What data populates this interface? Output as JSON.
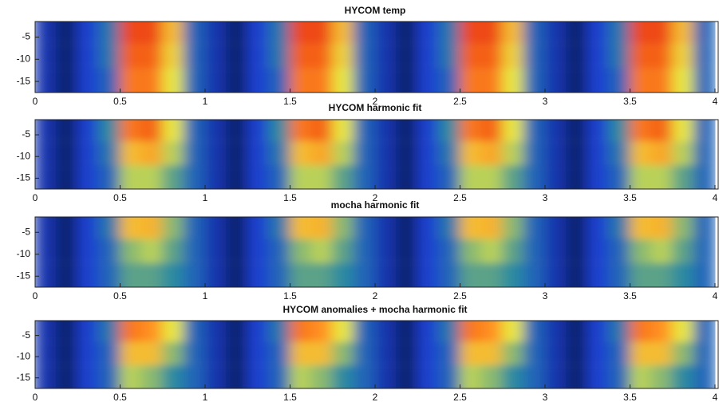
{
  "chart_data": [
    {
      "type": "heatmap",
      "title": "HYCOM temp",
      "xbins": [
        0,
        0.125,
        0.25,
        0.375,
        0.5,
        0.625,
        0.75,
        0.875,
        1,
        1.125,
        1.25,
        1.375,
        1.5,
        1.625,
        1.75,
        1.875,
        2,
        2.125,
        2.25,
        2.375,
        2.5,
        2.625,
        2.75,
        2.875,
        3,
        3.125,
        3.25,
        3.375,
        3.5,
        3.625,
        3.75,
        3.875,
        4
      ],
      "ybins": [
        -1.5,
        -6.5,
        -12,
        -17.5
      ],
      "values": [
        [
          0.15,
          0.05,
          0.2,
          0.35,
          0.95,
          0.95,
          0.7,
          0.3,
          0.15,
          0.05,
          0.2,
          0.35,
          0.95,
          0.95,
          0.7,
          0.3,
          0.15,
          0.05,
          0.2,
          0.35,
          0.95,
          0.95,
          0.7,
          0.3,
          0.15,
          0.05,
          0.2,
          0.35,
          0.95,
          0.95,
          0.7,
          0.3
        ],
        [
          0.15,
          0.05,
          0.2,
          0.35,
          0.9,
          0.9,
          0.65,
          0.3,
          0.15,
          0.05,
          0.2,
          0.35,
          0.9,
          0.9,
          0.65,
          0.3,
          0.15,
          0.05,
          0.2,
          0.35,
          0.9,
          0.9,
          0.65,
          0.3,
          0.15,
          0.05,
          0.2,
          0.35,
          0.9,
          0.9,
          0.65,
          0.3
        ],
        [
          0.15,
          0.05,
          0.2,
          0.3,
          0.85,
          0.85,
          0.6,
          0.3,
          0.15,
          0.05,
          0.2,
          0.3,
          0.85,
          0.85,
          0.6,
          0.3,
          0.15,
          0.05,
          0.2,
          0.3,
          0.85,
          0.85,
          0.6,
          0.3,
          0.15,
          0.05,
          0.2,
          0.3,
          0.85,
          0.85,
          0.6,
          0.3
        ]
      ],
      "colorscale": [
        "#061a4a",
        "#1a3fd0",
        "#2c8aa0",
        "#e8e840",
        "#ff9020",
        "#e83010"
      ],
      "xlim": [
        0,
        4
      ],
      "ylim": [
        -17.5,
        -1.5
      ],
      "xticks": [
        0,
        0.5,
        1,
        1.5,
        2,
        2.5,
        3,
        3.5,
        4
      ],
      "yticks": [
        -5,
        -10,
        -15
      ]
    },
    {
      "type": "heatmap",
      "title": "HYCOM harmonic fit",
      "xbins": [
        0,
        0.125,
        0.25,
        0.375,
        0.5,
        0.625,
        0.75,
        0.875,
        1,
        1.125,
        1.25,
        1.375,
        1.5,
        1.625,
        1.75,
        1.875,
        2,
        2.125,
        2.25,
        2.375,
        2.5,
        2.625,
        2.75,
        2.875,
        3,
        3.125,
        3.25,
        3.375,
        3.5,
        3.625,
        3.75,
        3.875,
        4
      ],
      "ybins": [
        -1.5,
        -6.5,
        -12,
        -17.5
      ],
      "values": [
        [
          0.15,
          0.05,
          0.2,
          0.4,
          0.85,
          0.9,
          0.6,
          0.3,
          0.15,
          0.05,
          0.2,
          0.4,
          0.85,
          0.9,
          0.6,
          0.3,
          0.15,
          0.05,
          0.2,
          0.4,
          0.85,
          0.9,
          0.6,
          0.3,
          0.15,
          0.05,
          0.2,
          0.4,
          0.85,
          0.9,
          0.6,
          0.3
        ],
        [
          0.15,
          0.05,
          0.2,
          0.35,
          0.7,
          0.75,
          0.55,
          0.3,
          0.15,
          0.05,
          0.2,
          0.35,
          0.7,
          0.75,
          0.55,
          0.3,
          0.15,
          0.05,
          0.2,
          0.35,
          0.7,
          0.75,
          0.55,
          0.3,
          0.15,
          0.05,
          0.2,
          0.35,
          0.7,
          0.75,
          0.55,
          0.3
        ],
        [
          0.15,
          0.05,
          0.2,
          0.3,
          0.55,
          0.55,
          0.45,
          0.3,
          0.15,
          0.05,
          0.2,
          0.3,
          0.55,
          0.55,
          0.45,
          0.3,
          0.15,
          0.05,
          0.2,
          0.3,
          0.55,
          0.55,
          0.45,
          0.3,
          0.15,
          0.05,
          0.2,
          0.3,
          0.55,
          0.55,
          0.45,
          0.3
        ]
      ],
      "colorscale": [
        "#061a4a",
        "#1a3fd0",
        "#2c8aa0",
        "#e8e840",
        "#ff9020",
        "#e83010"
      ],
      "xlim": [
        0,
        4
      ],
      "ylim": [
        -17.5,
        -1.5
      ],
      "xticks": [
        0,
        0.5,
        1,
        1.5,
        2,
        2.5,
        3,
        3.5,
        4
      ],
      "yticks": [
        -5,
        -10,
        -15
      ]
    },
    {
      "type": "heatmap",
      "title": "mocha harmonic fit",
      "xbins": [
        0,
        0.125,
        0.25,
        0.375,
        0.5,
        0.625,
        0.75,
        0.875,
        1,
        1.125,
        1.25,
        1.375,
        1.5,
        1.625,
        1.75,
        1.875,
        2,
        2.125,
        2.25,
        2.375,
        2.5,
        2.625,
        2.75,
        2.875,
        3,
        3.125,
        3.25,
        3.375,
        3.5,
        3.625,
        3.75,
        3.875,
        4
      ],
      "ybins": [
        -1.5,
        -6.5,
        -12,
        -17.5
      ],
      "values": [
        [
          0.15,
          0.05,
          0.2,
          0.35,
          0.7,
          0.72,
          0.5,
          0.3,
          0.15,
          0.05,
          0.2,
          0.35,
          0.7,
          0.72,
          0.5,
          0.3,
          0.15,
          0.05,
          0.2,
          0.35,
          0.7,
          0.72,
          0.5,
          0.3,
          0.15,
          0.05,
          0.2,
          0.35,
          0.7,
          0.72,
          0.5,
          0.3
        ],
        [
          0.15,
          0.05,
          0.2,
          0.3,
          0.5,
          0.55,
          0.45,
          0.3,
          0.15,
          0.05,
          0.2,
          0.3,
          0.5,
          0.55,
          0.45,
          0.3,
          0.15,
          0.05,
          0.2,
          0.3,
          0.5,
          0.55,
          0.45,
          0.3,
          0.15,
          0.05,
          0.2,
          0.3,
          0.5,
          0.55,
          0.45,
          0.3
        ],
        [
          0.15,
          0.05,
          0.2,
          0.3,
          0.45,
          0.45,
          0.4,
          0.3,
          0.15,
          0.05,
          0.2,
          0.3,
          0.45,
          0.45,
          0.4,
          0.3,
          0.15,
          0.05,
          0.2,
          0.3,
          0.45,
          0.45,
          0.4,
          0.3,
          0.15,
          0.05,
          0.2,
          0.3,
          0.45,
          0.45,
          0.4,
          0.3
        ]
      ],
      "colorscale": [
        "#061a4a",
        "#1a3fd0",
        "#2c8aa0",
        "#e8e840",
        "#ff9020",
        "#e83010"
      ],
      "xlim": [
        0,
        4
      ],
      "ylim": [
        -17.5,
        -1.5
      ],
      "xticks": [
        0,
        0.5,
        1,
        1.5,
        2,
        2.5,
        3,
        3.5,
        4
      ],
      "yticks": [
        -5,
        -10,
        -15
      ]
    },
    {
      "type": "heatmap",
      "title": "HYCOM anomalies + mocha harmonic fit",
      "xbins": [
        0,
        0.125,
        0.25,
        0.375,
        0.5,
        0.625,
        0.75,
        0.875,
        1,
        1.125,
        1.25,
        1.375,
        1.5,
        1.625,
        1.75,
        1.875,
        2,
        2.125,
        2.25,
        2.375,
        2.5,
        2.625,
        2.75,
        2.875,
        3,
        3.125,
        3.25,
        3.375,
        3.5,
        3.625,
        3.75,
        3.875,
        4
      ],
      "ybins": [
        -1.5,
        -6.5,
        -12,
        -17.5
      ],
      "values": [
        [
          0.15,
          0.05,
          0.2,
          0.35,
          0.85,
          0.8,
          0.6,
          0.3,
          0.15,
          0.05,
          0.2,
          0.35,
          0.85,
          0.8,
          0.6,
          0.3,
          0.15,
          0.05,
          0.2,
          0.35,
          0.85,
          0.8,
          0.6,
          0.3,
          0.15,
          0.05,
          0.2,
          0.35,
          0.85,
          0.8,
          0.6,
          0.3
        ],
        [
          0.15,
          0.05,
          0.2,
          0.3,
          0.7,
          0.7,
          0.5,
          0.3,
          0.15,
          0.05,
          0.2,
          0.3,
          0.7,
          0.7,
          0.5,
          0.3,
          0.15,
          0.05,
          0.2,
          0.3,
          0.7,
          0.7,
          0.5,
          0.3,
          0.15,
          0.05,
          0.2,
          0.3,
          0.7,
          0.7,
          0.5,
          0.3
        ],
        [
          0.15,
          0.05,
          0.2,
          0.3,
          0.55,
          0.5,
          0.4,
          0.3,
          0.15,
          0.05,
          0.2,
          0.3,
          0.55,
          0.5,
          0.4,
          0.3,
          0.15,
          0.05,
          0.2,
          0.3,
          0.55,
          0.5,
          0.4,
          0.3,
          0.15,
          0.05,
          0.2,
          0.3,
          0.55,
          0.5,
          0.4,
          0.3
        ]
      ],
      "colorscale": [
        "#061a4a",
        "#1a3fd0",
        "#2c8aa0",
        "#e8e840",
        "#ff9020",
        "#e83010"
      ],
      "xlim": [
        0,
        4
      ],
      "ylim": [
        -17.5,
        -1.5
      ],
      "xticks": [
        0,
        0.5,
        1,
        1.5,
        2,
        2.5,
        3,
        3.5,
        4
      ],
      "yticks": [
        -5,
        -10,
        -15
      ]
    }
  ]
}
